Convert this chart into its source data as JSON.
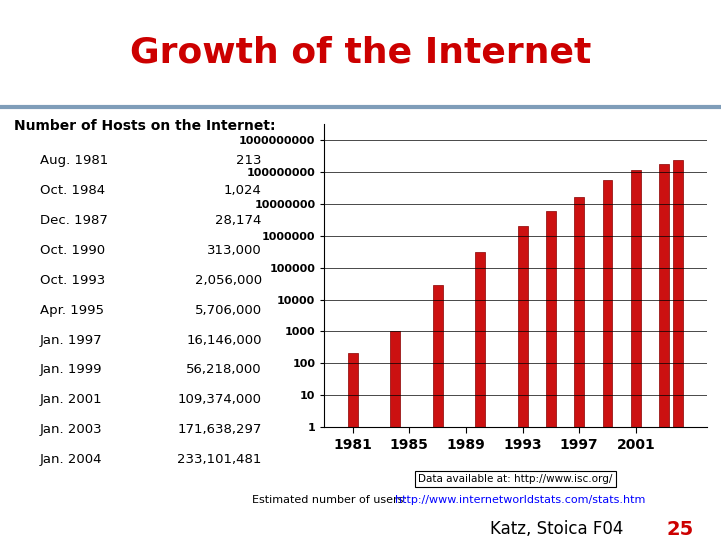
{
  "title": "Growth of the Internet",
  "title_color": "#cc0000",
  "title_fontsize": 26,
  "title_fontweight": "bold",
  "bg_color": "#ffffff",
  "divider_color": "#7f9db9",
  "table_header": "Number of Hosts on the Internet:",
  "table_rows": [
    [
      "Aug. 1981",
      "213"
    ],
    [
      "Oct. 1984",
      "1,024"
    ],
    [
      "Dec. 1987",
      "28,174"
    ],
    [
      "Oct. 1990",
      "313,000"
    ],
    [
      "Oct. 1993",
      "2,056,000"
    ],
    [
      "Apr. 1995",
      "5,706,000"
    ],
    [
      "Jan. 1997",
      "16,146,000"
    ],
    [
      "Jan. 1999",
      "56,218,000"
    ],
    [
      "Jan. 2001",
      "109,374,000"
    ],
    [
      "Jan. 2003",
      "171,638,297"
    ],
    [
      "Jan. 2004",
      "233,101,481"
    ]
  ],
  "bar_years": [
    1981,
    1984,
    1987,
    1990,
    1993,
    1995,
    1997,
    1999,
    2001,
    2003,
    2004
  ],
  "bar_values": [
    213,
    1024,
    28174,
    313000,
    2056000,
    5706000,
    16146000,
    56218000,
    109374000,
    171638297,
    233101481
  ],
  "bar_color": "#cc1111",
  "bar_edge_color": "#880000",
  "bar_width": 0.7,
  "xtick_labels": [
    "1981",
    "1985",
    "1989",
    "1993",
    "1997",
    "2001"
  ],
  "xtick_positions": [
    1981,
    1985,
    1989,
    1993,
    1997,
    2001
  ],
  "ymin": 1,
  "ymax": 1000000000,
  "yticks": [
    1,
    10,
    100,
    1000,
    10000,
    100000,
    1000000,
    10000000,
    100000000,
    1000000000
  ],
  "ytick_labels": [
    "1",
    "10",
    "100",
    "1000",
    "10000",
    "100000",
    "1000000",
    "10000000",
    "100000000",
    "1000000000"
  ],
  "data_source_text": "Data available at: http://www.isc.org/",
  "estimated_label": "Estimated number of users: ",
  "estimated_url": "http://www.internetworldstats.com/stats.htm",
  "footer_text": "Katz, Stoica F04",
  "footer_number": "25"
}
